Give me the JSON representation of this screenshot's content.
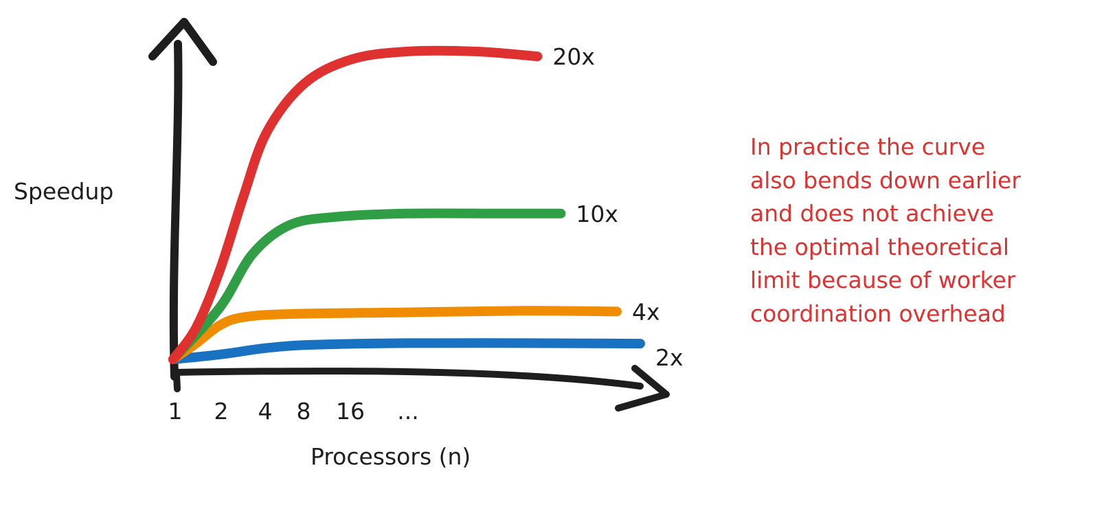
{
  "chart_data": {
    "type": "line",
    "xlabel": "Processors (n)",
    "ylabel": "Speedup",
    "x_tick_labels": [
      "1",
      "2",
      "4",
      "8",
      "16",
      "..."
    ],
    "series": [
      {
        "name": "2x",
        "color": "#1971c2",
        "points": [
          [
            0,
            1.0
          ],
          [
            0.1,
            1.3
          ],
          [
            0.2,
            1.7
          ],
          [
            0.3,
            1.9
          ],
          [
            0.5,
            2.0
          ],
          [
            0.75,
            2.0
          ],
          [
            1.0,
            1.97
          ]
        ]
      },
      {
        "name": "4x",
        "color": "#f08c00",
        "points": [
          [
            0,
            1.0
          ],
          [
            0.05,
            2.0
          ],
          [
            0.1,
            3.1
          ],
          [
            0.15,
            3.6
          ],
          [
            0.25,
            3.8
          ],
          [
            0.5,
            3.9
          ],
          [
            0.75,
            4.0
          ],
          [
            0.95,
            3.95
          ]
        ]
      },
      {
        "name": "10x",
        "color": "#2f9e44",
        "points": [
          [
            0,
            1.0
          ],
          [
            0.1,
            4.2
          ],
          [
            0.17,
            7.5
          ],
          [
            0.25,
            9.3
          ],
          [
            0.35,
            9.8
          ],
          [
            0.5,
            10.0
          ],
          [
            0.7,
            10.0
          ],
          [
            0.83,
            10.0
          ]
        ]
      },
      {
        "name": "20x",
        "color": "#e03131",
        "points": [
          [
            0,
            1.0
          ],
          [
            0.05,
            3.0
          ],
          [
            0.1,
            6.5
          ],
          [
            0.15,
            11.0
          ],
          [
            0.2,
            15.0
          ],
          [
            0.28,
            18.0
          ],
          [
            0.38,
            19.5
          ],
          [
            0.5,
            20.0
          ],
          [
            0.65,
            20.0
          ],
          [
            0.78,
            19.7
          ]
        ]
      }
    ]
  },
  "annotation": {
    "color": "#e03131",
    "lines": [
      "In practice the curve",
      "also bends down earlier",
      "and does not achieve",
      "the optimal theoretical",
      "limit because of worker",
      "coordination overhead"
    ]
  }
}
